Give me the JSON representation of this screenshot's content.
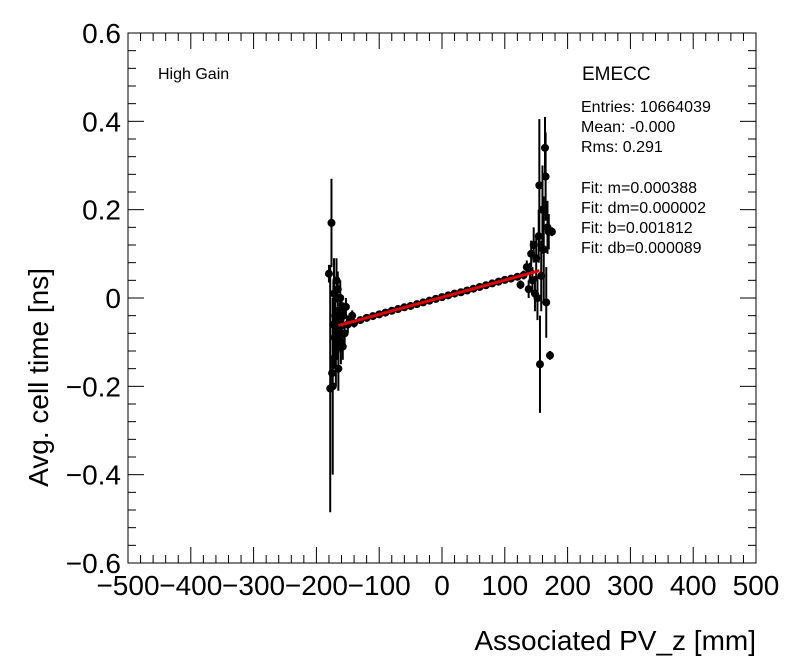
{
  "chart_data": {
    "type": "scatter",
    "xlabel": "Associated PV_z [mm]",
    "ylabel": "Avg. cell time [ns]",
    "xlim": [
      -500,
      500
    ],
    "ylim": [
      -0.6,
      0.6
    ],
    "x_ticks": [
      -500,
      -400,
      -300,
      -200,
      -100,
      0,
      100,
      200,
      300,
      400,
      500
    ],
    "y_ticks": [
      -0.6,
      -0.4,
      -0.2,
      0,
      0.2,
      0.4,
      0.6
    ],
    "x_tick_labels": [
      "−500",
      "−400",
      "−300",
      "−200",
      "−100",
      "0",
      "100",
      "200",
      "300",
      "400",
      "500"
    ],
    "y_tick_labels": [
      "−0.6",
      "−0.4",
      "−0.2",
      "0",
      "0.2",
      "0.4",
      "0.6"
    ],
    "label_left": "High Gain",
    "label_right": "EMECC",
    "stats": [
      "Entries: 10664039",
      "Mean: -0.000",
      "Rms: 0.291"
    ],
    "fit_lines": [
      "Fit: m=0.000388",
      "Fit: dm=0.000002",
      "Fit: b=0.001812",
      "Fit: db=0.000089"
    ],
    "fit": {
      "m": 0.000388,
      "b": 0.001812,
      "x_range": [
        -165,
        155
      ],
      "color": "#e00000"
    },
    "marker_color": "#000000",
    "grid": false,
    "points": [
      {
        "x": -180,
        "y": 0.055,
        "err": 0.02
      },
      {
        "x": -178,
        "y": -0.205,
        "err": 0.28
      },
      {
        "x": -176,
        "y": 0.17,
        "err": 0.1
      },
      {
        "x": -175,
        "y": -0.17,
        "err": 0.04
      },
      {
        "x": -174,
        "y": -0.2,
        "err": 0.2
      },
      {
        "x": -173,
        "y": -0.06,
        "err": 0.1
      },
      {
        "x": -172,
        "y": 0.01,
        "err": 0.08
      },
      {
        "x": -171,
        "y": -0.09,
        "err": 0.07
      },
      {
        "x": -170,
        "y": -0.04,
        "err": 0.06
      },
      {
        "x": -169,
        "y": -0.12,
        "err": 0.08
      },
      {
        "x": -168,
        "y": 0.04,
        "err": 0.05
      },
      {
        "x": -167,
        "y": -0.08,
        "err": 0.06
      },
      {
        "x": -166,
        "y": 0.02,
        "err": 0.04
      },
      {
        "x": -165,
        "y": -0.16,
        "err": 0.05
      },
      {
        "x": -164,
        "y": -0.07,
        "err": 0.05
      },
      {
        "x": -163,
        "y": -0.05,
        "err": 0.04
      },
      {
        "x": -162,
        "y": 0.0,
        "err": 0.04
      },
      {
        "x": -161,
        "y": -0.1,
        "err": 0.05
      },
      {
        "x": -160,
        "y": -0.03,
        "err": 0.03
      },
      {
        "x": -158,
        "y": -0.11,
        "err": 0.03
      },
      {
        "x": -157,
        "y": -0.04,
        "err": 0.03
      },
      {
        "x": -155,
        "y": -0.08,
        "err": 0.025
      },
      {
        "x": -153,
        "y": -0.02,
        "err": 0.02
      },
      {
        "x": -150,
        "y": -0.06,
        "err": 0.02
      },
      {
        "x": -147,
        "y": -0.05,
        "err": 0.015
      },
      {
        "x": -143,
        "y": -0.04,
        "err": 0.012
      },
      {
        "x": -140,
        "y": -0.057,
        "err": 0.01
      },
      {
        "x": -130,
        "y": -0.05,
        "err": 0.008
      },
      {
        "x": -120,
        "y": -0.045,
        "err": 0.006
      },
      {
        "x": -110,
        "y": -0.041,
        "err": 0.005
      },
      {
        "x": -100,
        "y": -0.037,
        "err": 0.004
      },
      {
        "x": -90,
        "y": -0.033,
        "err": 0.004
      },
      {
        "x": -80,
        "y": -0.029,
        "err": 0.003
      },
      {
        "x": -70,
        "y": -0.025,
        "err": 0.003
      },
      {
        "x": -60,
        "y": -0.021,
        "err": 0.003
      },
      {
        "x": -50,
        "y": -0.018,
        "err": 0.003
      },
      {
        "x": -40,
        "y": -0.014,
        "err": 0.003
      },
      {
        "x": -30,
        "y": -0.01,
        "err": 0.003
      },
      {
        "x": -20,
        "y": -0.006,
        "err": 0.003
      },
      {
        "x": -10,
        "y": -0.002,
        "err": 0.003
      },
      {
        "x": 0,
        "y": 0.002,
        "err": 0.003
      },
      {
        "x": 10,
        "y": 0.006,
        "err": 0.003
      },
      {
        "x": 20,
        "y": 0.01,
        "err": 0.003
      },
      {
        "x": 30,
        "y": 0.013,
        "err": 0.003
      },
      {
        "x": 40,
        "y": 0.017,
        "err": 0.003
      },
      {
        "x": 50,
        "y": 0.021,
        "err": 0.003
      },
      {
        "x": 60,
        "y": 0.025,
        "err": 0.003
      },
      {
        "x": 70,
        "y": 0.029,
        "err": 0.003
      },
      {
        "x": 80,
        "y": 0.033,
        "err": 0.004
      },
      {
        "x": 90,
        "y": 0.037,
        "err": 0.004
      },
      {
        "x": 100,
        "y": 0.041,
        "err": 0.005
      },
      {
        "x": 110,
        "y": 0.044,
        "err": 0.006
      },
      {
        "x": 120,
        "y": 0.048,
        "err": 0.008
      },
      {
        "x": 125,
        "y": 0.03,
        "err": 0.01
      },
      {
        "x": 130,
        "y": 0.052,
        "err": 0.01
      },
      {
        "x": 135,
        "y": 0.07,
        "err": 0.015
      },
      {
        "x": 138,
        "y": 0.02,
        "err": 0.02
      },
      {
        "x": 140,
        "y": 0.06,
        "err": 0.02
      },
      {
        "x": 142,
        "y": 0.1,
        "err": 0.03
      },
      {
        "x": 144,
        "y": 0.04,
        "err": 0.03
      },
      {
        "x": 146,
        "y": 0.12,
        "err": 0.04
      },
      {
        "x": 148,
        "y": 0.01,
        "err": 0.04
      },
      {
        "x": 150,
        "y": 0.09,
        "err": 0.05
      },
      {
        "x": 152,
        "y": 0.0,
        "err": 0.05
      },
      {
        "x": 154,
        "y": 0.14,
        "err": 0.06
      },
      {
        "x": 155,
        "y": 0.255,
        "err": 0.15
      },
      {
        "x": 156,
        "y": -0.15,
        "err": 0.11
      },
      {
        "x": 158,
        "y": 0.05,
        "err": 0.08
      },
      {
        "x": 160,
        "y": 0.2,
        "err": 0.1
      },
      {
        "x": 162,
        "y": 0.11,
        "err": 0.12
      },
      {
        "x": 164,
        "y": 0.34,
        "err": 0.07
      },
      {
        "x": 165,
        "y": 0.275,
        "err": 0.1
      },
      {
        "x": 166,
        "y": -0.01,
        "err": 0.08
      },
      {
        "x": 168,
        "y": 0.16,
        "err": 0.06
      },
      {
        "x": 170,
        "y": 0.15,
        "err": 0.04
      },
      {
        "x": 172,
        "y": -0.13,
        "err": 0.01
      },
      {
        "x": 175,
        "y": 0.15,
        "err": 0.01
      }
    ]
  }
}
